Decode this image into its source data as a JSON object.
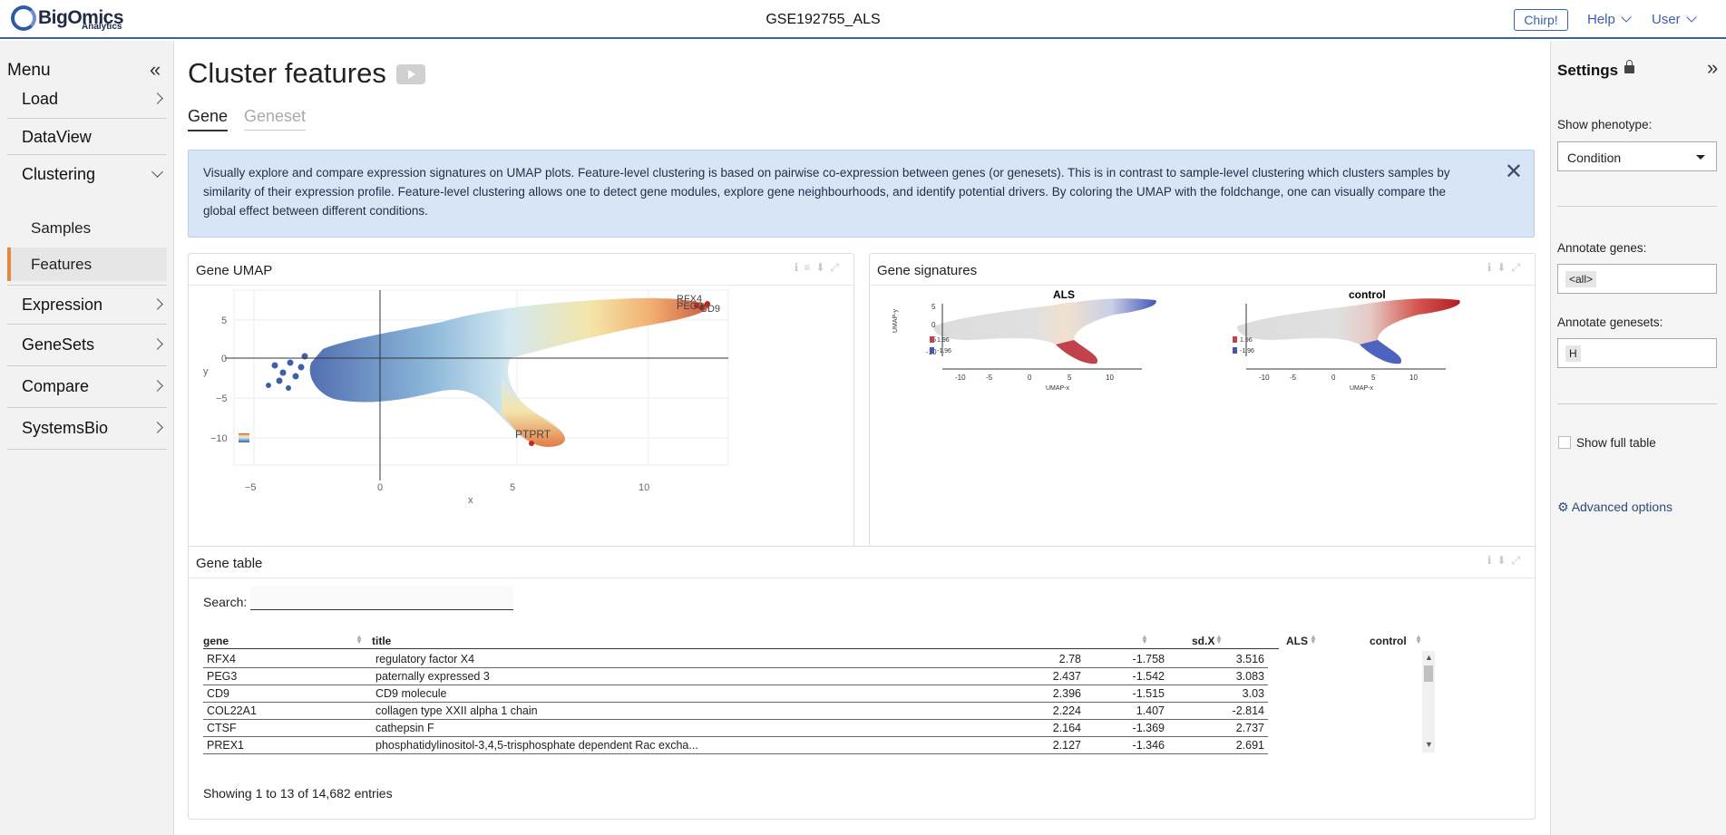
{
  "app": {
    "logo": "BigOmics",
    "logo_sub": "Analytics",
    "dataset_title": "GSE192755_ALS"
  },
  "topnav": {
    "chirp": "Chirp!",
    "help": "Help",
    "user": "User"
  },
  "menu": {
    "title": "Menu",
    "items": [
      {
        "label": "Load"
      },
      {
        "label": "DataView"
      },
      {
        "label": "Clustering"
      },
      {
        "label": "Expression"
      },
      {
        "label": "GeneSets"
      },
      {
        "label": "Compare"
      },
      {
        "label": "SystemsBio"
      }
    ],
    "sub_items": [
      {
        "label": "Samples"
      },
      {
        "label": "Features"
      }
    ]
  },
  "page": {
    "title": "Cluster features",
    "tabs": [
      {
        "label": "Gene"
      },
      {
        "label": "Geneset"
      }
    ],
    "info_text": "Visually explore and compare expression signatures on UMAP plots. Feature-level clustering is based on pairwise co-expression between genes (or genesets). This is in contrast to sample-level clustering which clusters samples by similarity of their expression profile. Feature-level clustering allows one to detect gene modules, explore gene neighbourhoods, and identify potential drivers. By coloring the UMAP with the foldchange, one can visually compare the global effect between different conditions."
  },
  "umap_card": {
    "title": "Gene UMAP",
    "x_label": "x",
    "y_label": "y",
    "x_ticks": [
      "−5",
      "0",
      "5",
      "10"
    ],
    "y_ticks": [
      "5",
      "0",
      "−5",
      "−10"
    ],
    "labels": [
      "RFX4",
      "PEG3",
      "CD9",
      "PTPRT"
    ]
  },
  "signatures_card": {
    "title": "Gene signatures",
    "panels": [
      {
        "title": "ALS"
      },
      {
        "title": "control"
      }
    ],
    "x_ticks": [
      "-10",
      "-5",
      "0",
      "5",
      "10"
    ],
    "y_ticks": [
      "5",
      "0",
      "-5",
      "-10"
    ],
    "x_label": "UMAP-x",
    "y_label": "UMAP-y",
    "legend": [
      "1.96",
      "-1.96"
    ]
  },
  "table_card": {
    "title": "Gene table",
    "search_label": "Search:",
    "search_value": "",
    "columns": [
      "gene",
      "title",
      "sd.X",
      "ALS",
      "control"
    ],
    "rows": [
      [
        "RFX4",
        "regulatory factor X4",
        "2.78",
        "-1.758",
        "3.516"
      ],
      [
        "PEG3",
        "paternally expressed 3",
        "2.437",
        "-1.542",
        "3.083"
      ],
      [
        "CD9",
        "CD9 molecule",
        "2.396",
        "-1.515",
        "3.03"
      ],
      [
        "COL22A1",
        "collagen type XXII alpha 1 chain",
        "2.224",
        "1.407",
        "-2.814"
      ],
      [
        "CTSF",
        "cathepsin F",
        "2.164",
        "-1.369",
        "2.737"
      ],
      [
        "PREX1",
        "phosphatidylinositol-3,4,5-trisphosphate dependent Rac excha...",
        "2.127",
        "-1.346",
        "2.691"
      ]
    ],
    "footer": "Showing 1 to 13 of 14,682 entries"
  },
  "settings": {
    "title": "Settings",
    "phenotype_label": "Show phenotype:",
    "phenotype_value": "Condition",
    "annotate_genes_label": "Annotate genes:",
    "annotate_genes_value": "<all>",
    "annotate_genesets_label": "Annotate genesets:",
    "annotate_genesets_value": "H",
    "full_table_label": "Show full table",
    "advanced_label": "Advanced options"
  }
}
